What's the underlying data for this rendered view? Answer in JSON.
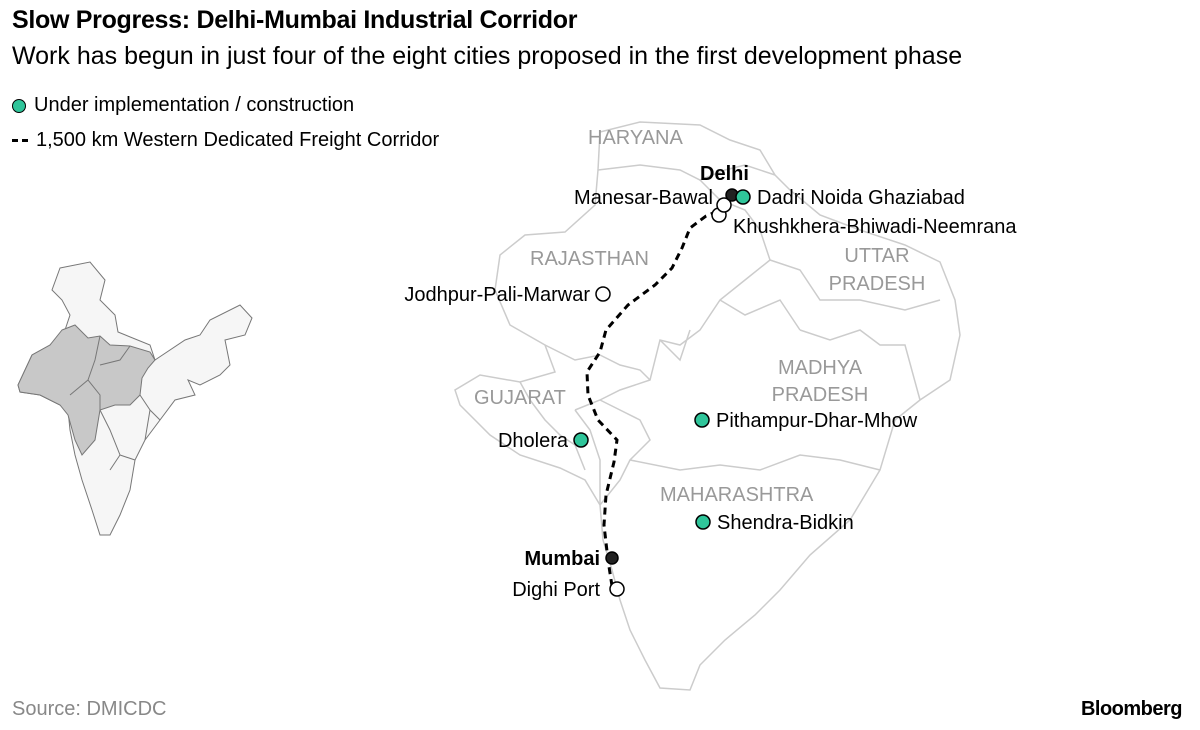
{
  "title": "Slow Progress: Delhi-Mumbai Industrial Corridor",
  "subtitle": "Work has begun in just four of the eight cities proposed in the first development phase",
  "legend": [
    {
      "label": "Under implementation / construction",
      "symbol": "green-dot",
      "color": "#2fc59a"
    },
    {
      "label": "1,500 km Western Dedicated Freight Corridor",
      "symbol": "dashed-line",
      "color": "#000000"
    }
  ],
  "states": {
    "haryana": "HARYANA",
    "rajasthan": "RAJASTHAN",
    "uttar_pradesh_1": "UTTAR",
    "uttar_pradesh_2": "PRADESH",
    "madhya_pradesh_1": "MADHYA",
    "madhya_pradesh_2": "PRADESH",
    "gujarat": "GUJARAT",
    "maharashtra": "MAHARASHTRA"
  },
  "cities": {
    "delhi": {
      "label": "Delhi",
      "type": "major-city"
    },
    "mumbai": {
      "label": "Mumbai",
      "type": "major-city"
    },
    "dadri": {
      "label": "Dadri Noida Ghaziabad",
      "status": "under-implementation"
    },
    "manesar": {
      "label": "Manesar-Bawal",
      "status": "proposed"
    },
    "khushkhera": {
      "label": "Khushkhera-Bhiwadi-Neemrana",
      "status": "proposed"
    },
    "jodhpur": {
      "label": "Jodhpur-Pali-Marwar",
      "status": "proposed"
    },
    "dholera": {
      "label": "Dholera",
      "status": "under-implementation"
    },
    "pithampur": {
      "label": "Pithampur-Dhar-Mhow",
      "status": "under-implementation"
    },
    "shendra": {
      "label": "Shendra-Bidkin",
      "status": "under-implementation"
    },
    "dighi": {
      "label": "Dighi Port",
      "status": "proposed"
    }
  },
  "colors": {
    "implemented": "#2fc59a",
    "border": "#cccccc",
    "state_label": "#999999",
    "inset_highlight": "#c8c8c8"
  },
  "source": "Source: DMICDC",
  "brand": "Bloomberg"
}
